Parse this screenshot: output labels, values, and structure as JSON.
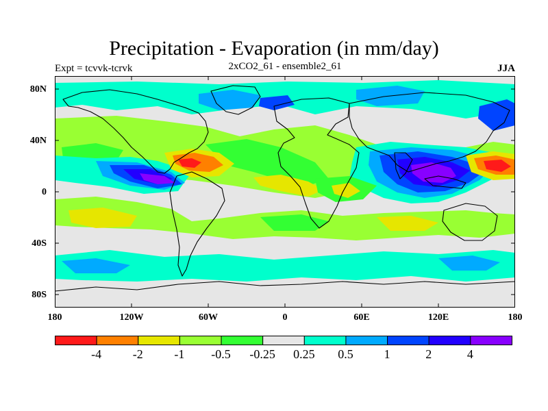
{
  "title": "Precipitation - Evaporation (in mm/day)",
  "expt_label": "Expt = tcvvk-tcrvk",
  "run_label": "2xCO2_61 - ensemble2_61",
  "season": "JJA",
  "lat_ticks": [
    "80N",
    "40N",
    "0",
    "40S",
    "80S"
  ],
  "lon_ticks": [
    "180",
    "120W",
    "60W",
    "0",
    "60E",
    "120E",
    "180"
  ],
  "colorbar": {
    "colors": [
      "#ff1a1a",
      "#ff8000",
      "#e6e600",
      "#99ff33",
      "#33ff33",
      "#e6e6e6",
      "#00ffcc",
      "#00aaff",
      "#0044ff",
      "#2200ff",
      "#8800ff"
    ],
    "labels": [
      "-4",
      "-2",
      "-1",
      "-0.5",
      "-0.25",
      "0.25",
      "0.5",
      "1",
      "2",
      "4"
    ]
  },
  "fill_colors": {
    "background": "#e6e6e6",
    "neg_strong": "#ff1a1a",
    "neg_orange": "#ff8000",
    "neg_yellow": "#e6e600",
    "neg_lightgreen": "#99ff33",
    "neg_green": "#33ff33",
    "pos_cyan": "#00ffcc",
    "pos_lightblue": "#00aaff",
    "pos_blue": "#0044ff",
    "pos_darkblue": "#2200ff",
    "pos_violet": "#8800ff"
  }
}
